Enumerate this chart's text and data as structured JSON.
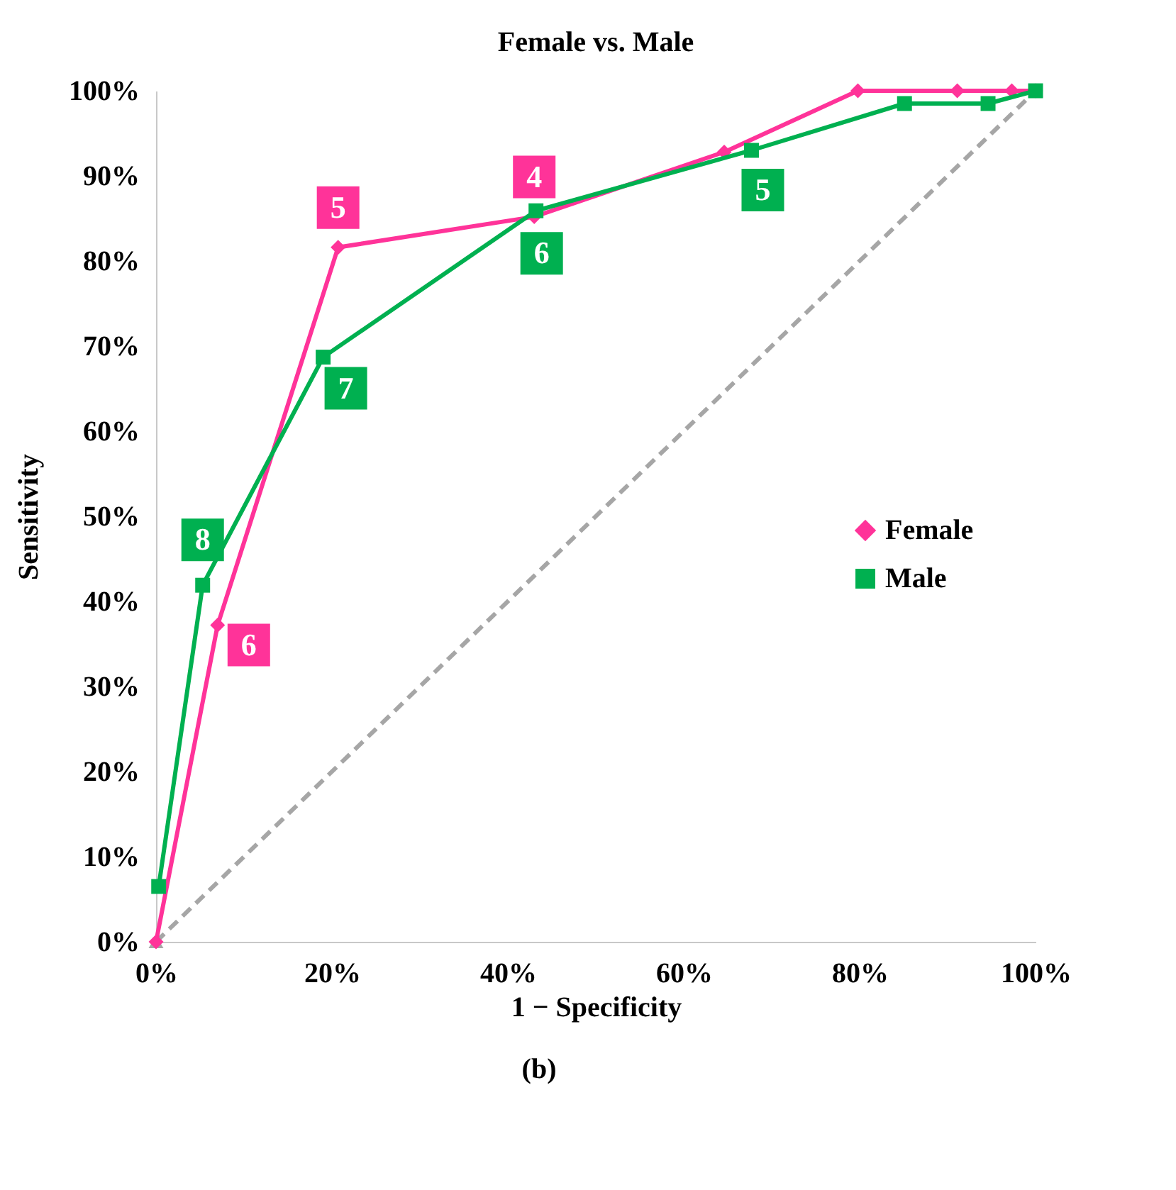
{
  "chart_data": {
    "type": "line",
    "title": "Female vs. Male",
    "xlabel": "1 − Specificity",
    "ylabel": "Sensitivity",
    "xlim": [
      0,
      100
    ],
    "ylim": [
      0,
      100
    ],
    "xticks": [
      {
        "value": 0,
        "label": "0%"
      },
      {
        "value": 20,
        "label": "20%"
      },
      {
        "value": 40,
        "label": "40%"
      },
      {
        "value": 60,
        "label": "60%"
      },
      {
        "value": 80,
        "label": "80%"
      },
      {
        "value": 100,
        "label": "100%"
      }
    ],
    "yticks": [
      {
        "value": 0,
        "label": "0%"
      },
      {
        "value": 10,
        "label": "10%"
      },
      {
        "value": 20,
        "label": "20%"
      },
      {
        "value": 30,
        "label": "30%"
      },
      {
        "value": 40,
        "label": "40%"
      },
      {
        "value": 50,
        "label": "50%"
      },
      {
        "value": 60,
        "label": "60%"
      },
      {
        "value": 70,
        "label": "70%"
      },
      {
        "value": 80,
        "label": "80%"
      },
      {
        "value": 90,
        "label": "90%"
      },
      {
        "value": 100,
        "label": "100%"
      }
    ],
    "grid": false,
    "legend": "right",
    "series": [
      {
        "color": "#a6a6a6",
        "line_style": "dashed",
        "marker": "triangle",
        "x": [
          0,
          100
        ],
        "values": [
          0,
          100
        ]
      },
      {
        "name": "Female",
        "color": "#ff3399",
        "marker": "diamond",
        "line_style": "solid",
        "x": [
          0,
          7.0,
          20.7,
          43.0,
          64.6,
          79.8,
          91.1,
          97.3,
          100
        ],
        "values": [
          0,
          37.2,
          81.6,
          85.2,
          92.8,
          100,
          100,
          100,
          100
        ]
      },
      {
        "name": "Male",
        "color": "#00b050",
        "marker": "square",
        "line_style": "solid",
        "x": [
          0.3,
          5.3,
          19.0,
          43.2,
          67.7,
          85.1,
          94.6,
          100
        ],
        "values": [
          6.5,
          41.9,
          68.7,
          85.9,
          93.0,
          98.5,
          98.5,
          100
        ]
      }
    ],
    "annotations": [
      {
        "text": "6",
        "x": 7.0,
        "y": 37.2
      },
      {
        "text": "5",
        "x": 20.7,
        "y": 81.6
      },
      {
        "text": "4",
        "x": 43.0,
        "y": 85.2
      },
      {
        "text": "8",
        "x": 5.3,
        "y": 41.9
      },
      {
        "text": "7",
        "x": 19.0,
        "y": 68.7
      },
      {
        "text": "6",
        "x": 43.2,
        "y": 85.9
      },
      {
        "text": "5",
        "x": 67.7,
        "y": 93.0
      },
      "(b)"
    ]
  }
}
